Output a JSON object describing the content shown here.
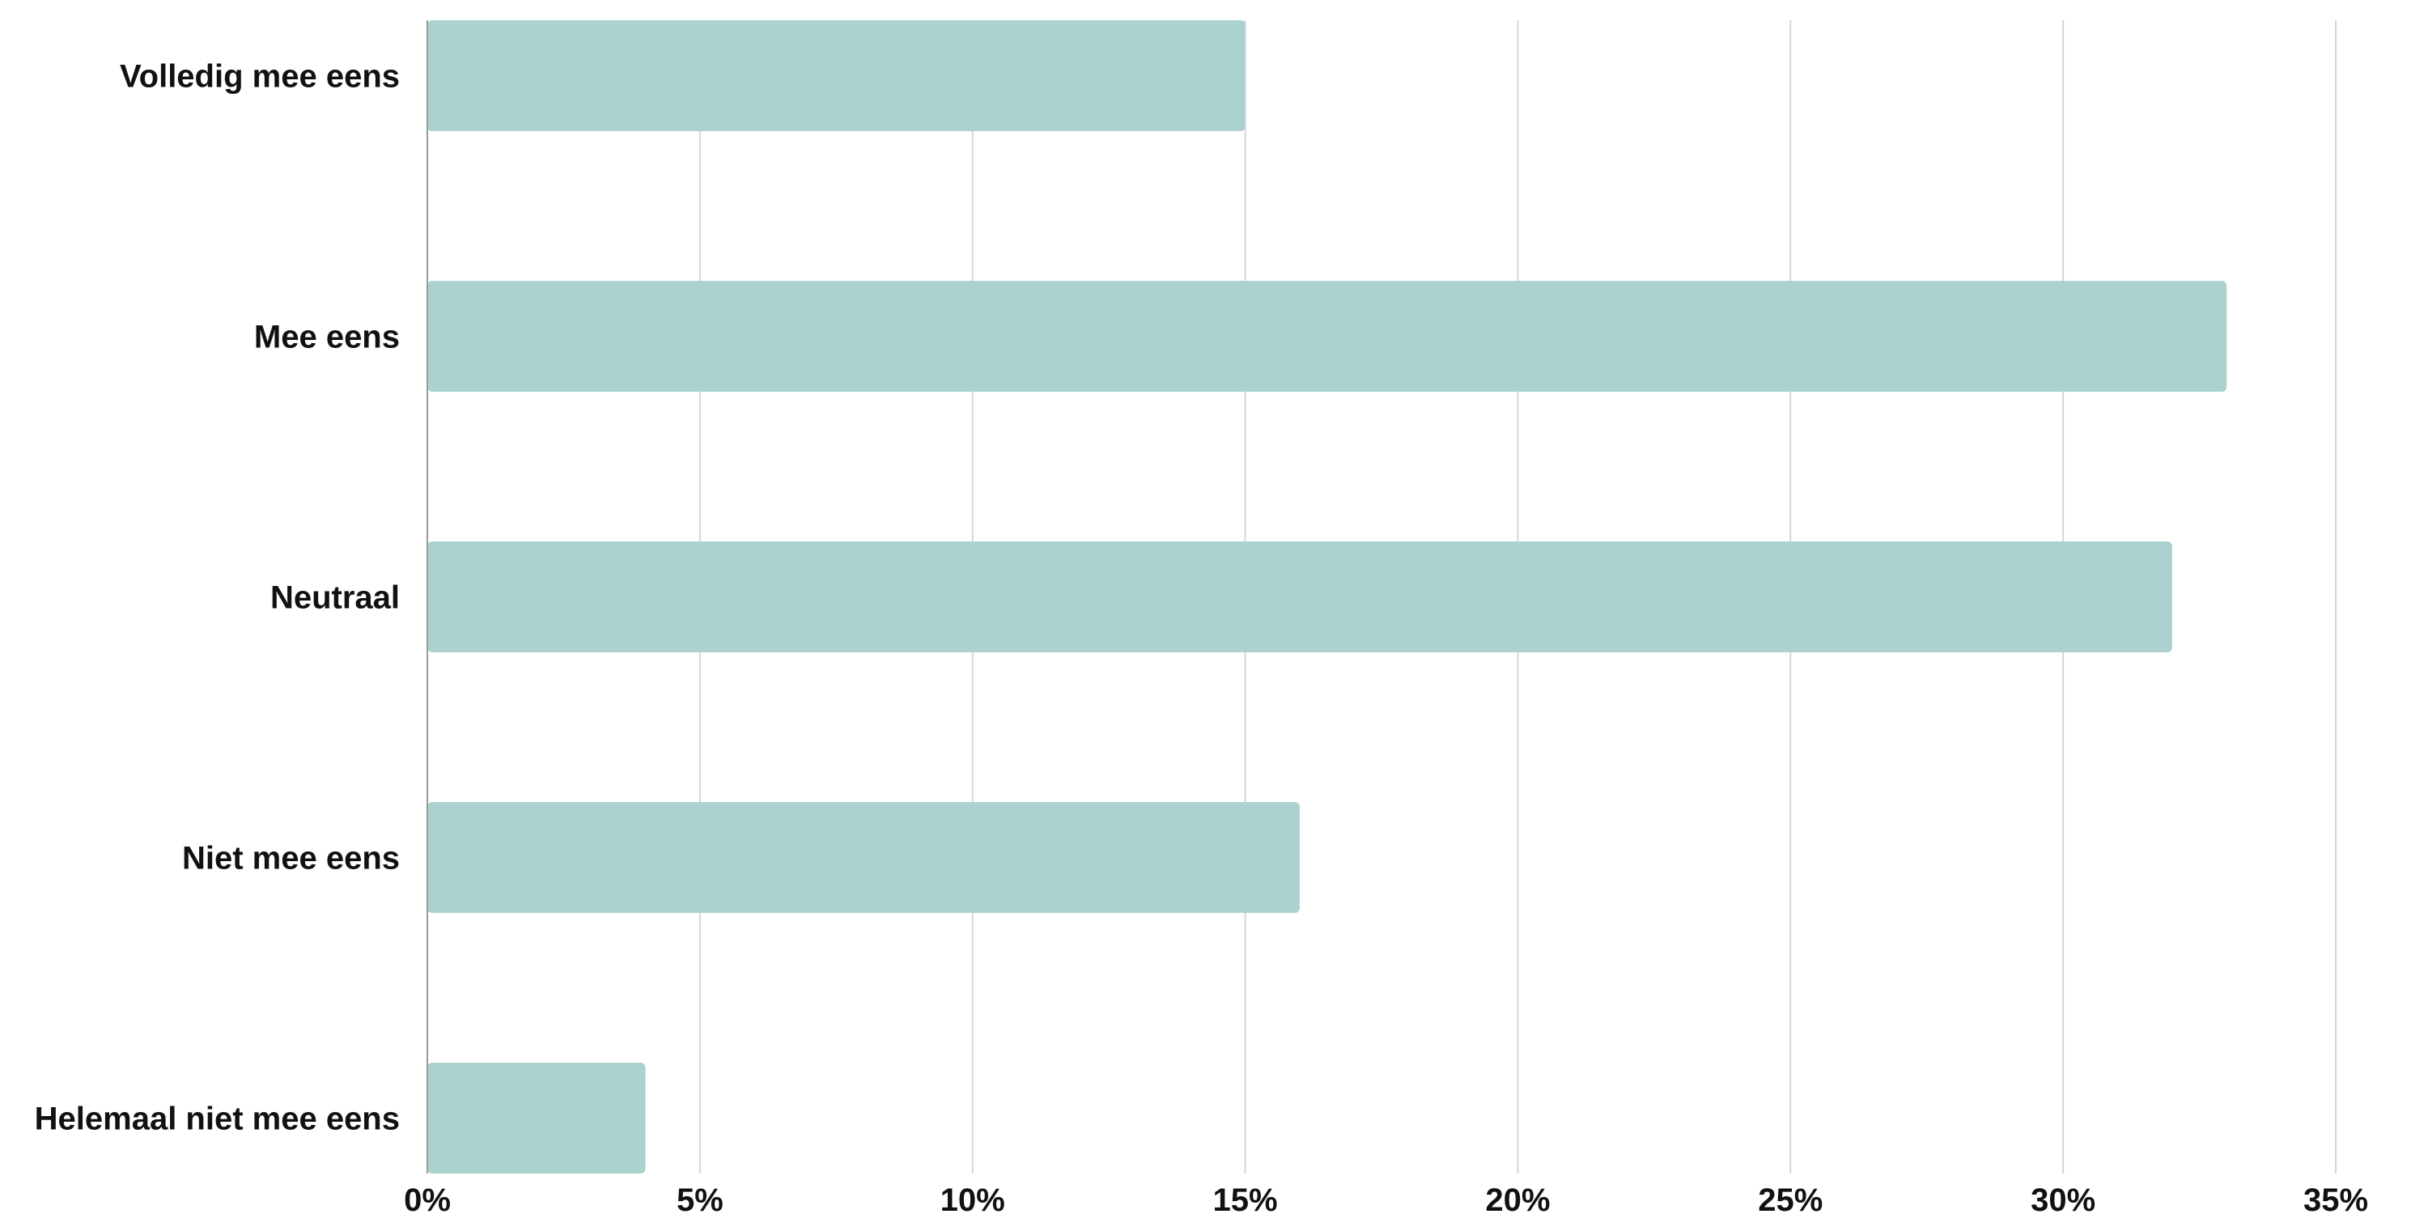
{
  "chart_data": {
    "type": "bar",
    "orientation": "horizontal",
    "categories": [
      "Volledig mee eens",
      "Mee eens",
      "Neutraal",
      "Niet mee eens",
      "Helemaal niet mee eens"
    ],
    "values": [
      15,
      33,
      32,
      16,
      4
    ],
    "xticks": [
      "0%",
      "5%",
      "10%",
      "15%",
      "20%",
      "25%",
      "30%",
      "35%"
    ],
    "xlim": [
      0,
      35
    ],
    "unit": "%",
    "grid": "vertical",
    "bar_color": "#abd2cf"
  }
}
